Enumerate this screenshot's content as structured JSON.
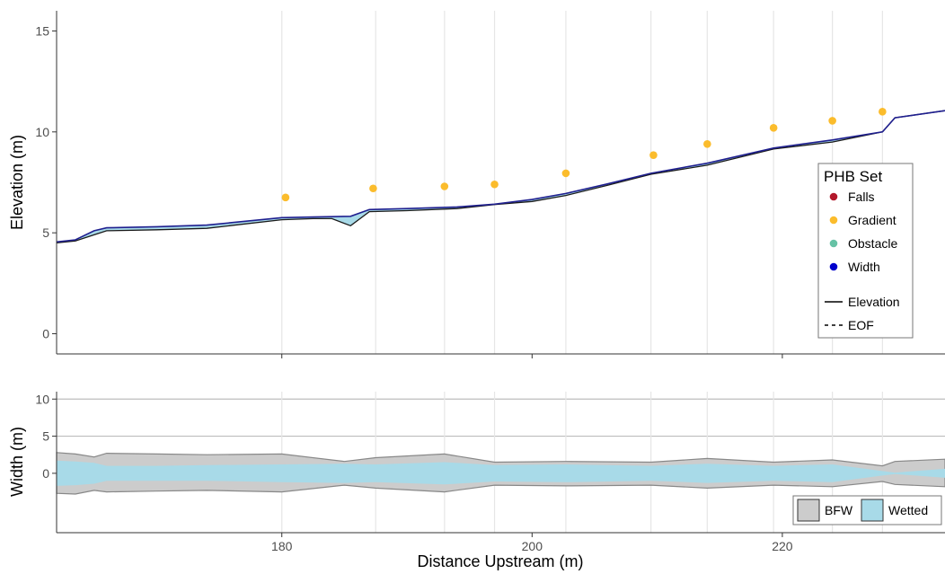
{
  "chart_data": [
    {
      "type": "line",
      "panel": "top",
      "ylabel": "Elevation (m)",
      "xlim": [
        162,
        233
      ],
      "ylim": [
        -1,
        16
      ],
      "yticks": [
        0,
        5,
        10,
        15
      ],
      "xgrid": [
        180,
        187.5,
        193,
        197,
        202.7,
        209.5,
        214,
        219.3,
        224,
        228
      ],
      "elevation": {
        "x": [
          162,
          163.5,
          165,
          166,
          170,
          174,
          180,
          182.5,
          184,
          185.5,
          187,
          190,
          194,
          197,
          200,
          202.7,
          206,
          209.5,
          214,
          219.3,
          224,
          228,
          229,
          233
        ],
        "y": [
          4.5,
          4.6,
          4.9,
          5.1,
          5.15,
          5.22,
          5.65,
          5.7,
          5.7,
          5.35,
          6.05,
          6.1,
          6.2,
          6.4,
          6.55,
          6.85,
          7.35,
          7.9,
          8.35,
          9.15,
          9.5,
          10.0,
          10.7,
          11.05
        ]
      },
      "eof": {
        "x": [
          162,
          163.5,
          165,
          166,
          170,
          174,
          180,
          182.5,
          184,
          185.5,
          187,
          190,
          194,
          197,
          200,
          202.7,
          206,
          209.5,
          214,
          219.3,
          224,
          228,
          229,
          233
        ],
        "y": [
          4.55,
          4.65,
          5.1,
          5.25,
          5.3,
          5.38,
          5.75,
          5.78,
          5.8,
          5.82,
          6.15,
          6.2,
          6.28,
          6.42,
          6.65,
          6.95,
          7.42,
          7.95,
          8.45,
          9.2,
          9.6,
          10.0,
          10.7,
          11.05
        ]
      },
      "gradient_points": {
        "x": [
          180.3,
          187.3,
          193,
          197,
          202.7,
          209.7,
          214,
          219.3,
          224,
          228
        ],
        "y": [
          6.75,
          7.2,
          7.3,
          7.4,
          7.95,
          8.85,
          9.4,
          10.2,
          10.55,
          11.0
        ]
      },
      "legend": {
        "title": "PHB Set",
        "placement": "right",
        "point_entries": [
          {
            "label": "Falls",
            "color": "#b2182b"
          },
          {
            "label": "Gradient",
            "color": "#fbbc2c"
          },
          {
            "label": "Obstacle",
            "color": "#66c2a5"
          },
          {
            "label": "Width",
            "color": "#0000cc"
          }
        ],
        "line_entries": [
          {
            "label": "Elevation",
            "style": "solid"
          },
          {
            "label": "EOF",
            "style": "dashed"
          }
        ]
      },
      "colors": {
        "gradient": "#fbbc2c",
        "eof_line": "#1f1f8f",
        "elevation_line": "#1a1a1a",
        "fill": "#a8dae8"
      }
    },
    {
      "type": "area",
      "panel": "bottom",
      "ylabel": "Width (m)",
      "xlabel": "Distance Upstream (m)",
      "xlim": [
        162,
        233
      ],
      "ylim": [
        -8,
        11
      ],
      "yticks": [
        0,
        5,
        10
      ],
      "xticks": [
        180,
        200,
        220
      ],
      "hlines": [
        5,
        10
      ],
      "x": [
        162,
        163.5,
        165,
        166,
        170,
        174,
        180,
        185,
        187.5,
        193,
        197,
        202.7,
        209.5,
        214,
        219.3,
        224,
        228,
        229,
        233
      ],
      "bfw_upper": [
        2.8,
        2.6,
        2.2,
        2.7,
        2.6,
        2.5,
        2.6,
        1.6,
        2.1,
        2.6,
        1.5,
        1.6,
        1.5,
        2.0,
        1.5,
        1.8,
        1.0,
        1.6,
        1.9
      ],
      "bfw_lower": [
        -2.7,
        -2.8,
        -2.3,
        -2.5,
        -2.4,
        -2.3,
        -2.5,
        -1.6,
        -2.0,
        -2.5,
        -1.6,
        -1.7,
        -1.6,
        -2.0,
        -1.6,
        -1.8,
        -1.1,
        -1.5,
        -1.8
      ],
      "wetted_upper": [
        1.7,
        1.6,
        1.4,
        1.0,
        1.0,
        1.1,
        1.2,
        1.3,
        1.2,
        1.5,
        1.1,
        1.2,
        1.0,
        1.3,
        1.0,
        1.2,
        0.3,
        0.1,
        0.6
      ],
      "wetted_lower": [
        -1.7,
        -1.6,
        -1.4,
        -1.0,
        -1.0,
        -1.0,
        -1.2,
        -1.3,
        -1.2,
        -1.5,
        -1.1,
        -1.2,
        -1.0,
        -1.3,
        -1.0,
        -1.2,
        -0.3,
        -0.1,
        -0.6
      ],
      "legend": {
        "placement": "bottom-right",
        "entries": [
          {
            "label": "BFW",
            "color": "#cccccc"
          },
          {
            "label": "Wetted",
            "color": "#a8dae8"
          }
        ]
      }
    }
  ]
}
